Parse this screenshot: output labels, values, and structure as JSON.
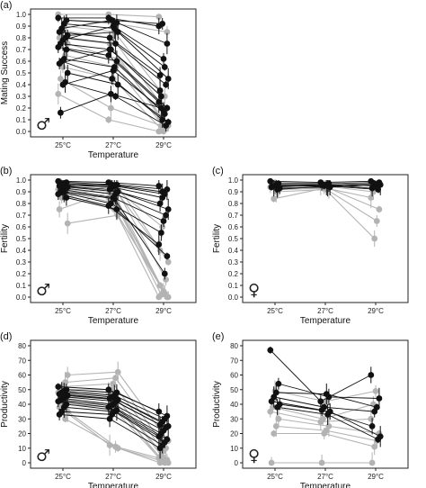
{
  "chart_data": [
    {
      "panel": "(a)",
      "type": "line",
      "sex_symbol": "♂",
      "xlabel": "Temperature",
      "ylabel": "Mating Success",
      "categories": [
        "25°C",
        "27°C",
        "29°C"
      ],
      "ylim": [
        0,
        1
      ],
      "yticks": [
        "0.0",
        "0.1",
        "0.2",
        "0.3",
        "0.4",
        "0.5",
        "0.6",
        "0.7",
        "0.8",
        "0.9",
        "1.0"
      ],
      "series_colors": {
        "dark": "#111111",
        "light": "#b3b3b3"
      },
      "series": [
        {
          "group": "dark",
          "values": [
            0.97,
            0.97,
            0.9
          ]
        },
        {
          "group": "dark",
          "values": [
            0.95,
            0.93,
            0.75
          ]
        },
        {
          "group": "dark",
          "values": [
            0.92,
            0.88,
            0.55
          ]
        },
        {
          "group": "dark",
          "values": [
            0.88,
            0.95,
            0.92
          ]
        },
        {
          "group": "dark",
          "values": [
            0.85,
            0.8,
            0.48
          ]
        },
        {
          "group": "dark",
          "values": [
            0.82,
            0.85,
            0.45
          ]
        },
        {
          "group": "dark",
          "values": [
            0.8,
            0.75,
            0.4
          ]
        },
        {
          "group": "dark",
          "values": [
            0.78,
            0.9,
            0.62
          ]
        },
        {
          "group": "dark",
          "values": [
            0.75,
            0.7,
            0.3
          ]
        },
        {
          "group": "dark",
          "values": [
            0.72,
            0.65,
            0.25
          ]
        },
        {
          "group": "dark",
          "values": [
            0.7,
            0.6,
            0.2
          ]
        },
        {
          "group": "dark",
          "values": [
            0.62,
            0.55,
            0.15
          ]
        },
        {
          "group": "dark",
          "values": [
            0.6,
            0.45,
            0.1
          ]
        },
        {
          "group": "dark",
          "values": [
            0.58,
            0.7,
            0.35
          ]
        },
        {
          "group": "dark",
          "values": [
            0.5,
            0.4,
            0.08
          ]
        },
        {
          "group": "dark",
          "values": [
            0.42,
            0.3,
            0.05
          ]
        },
        {
          "group": "dark",
          "values": [
            0.4,
            0.52,
            0.18
          ]
        },
        {
          "group": "dark",
          "values": [
            0.16,
            0.32,
            0.2
          ]
        },
        {
          "group": "light",
          "values": [
            1.0,
            1.0,
            0.98
          ]
        },
        {
          "group": "light",
          "values": [
            0.95,
            0.92,
            0.85
          ]
        },
        {
          "group": "light",
          "values": [
            0.9,
            0.85,
            0.3
          ]
        },
        {
          "group": "light",
          "values": [
            0.86,
            0.8,
            0.22
          ]
        },
        {
          "group": "light",
          "values": [
            0.8,
            0.75,
            0.12
          ]
        },
        {
          "group": "light",
          "values": [
            0.75,
            0.62,
            0.05
          ]
        },
        {
          "group": "light",
          "values": [
            0.65,
            0.55,
            0.02
          ]
        },
        {
          "group": "light",
          "values": [
            0.55,
            0.45,
            0.0
          ]
        },
        {
          "group": "light",
          "values": [
            0.45,
            0.2,
            0.05
          ]
        },
        {
          "group": "light",
          "values": [
            0.32,
            0.1,
            0.0
          ]
        }
      ]
    },
    {
      "panel": "(b)",
      "type": "line",
      "sex_symbol": "♂",
      "xlabel": "Temperature",
      "ylabel": "Fertility",
      "categories": [
        "25°C",
        "27°C",
        "29°C"
      ],
      "ylim": [
        0,
        1
      ],
      "yticks": [
        "0.0",
        "0.1",
        "0.2",
        "0.3",
        "0.4",
        "0.5",
        "0.6",
        "0.7",
        "0.8",
        "0.9",
        "1.0"
      ],
      "series_colors": {
        "dark": "#111111",
        "light": "#b3b3b3"
      },
      "series": [
        {
          "group": "dark",
          "values": [
            0.99,
            0.98,
            0.95
          ]
        },
        {
          "group": "dark",
          "values": [
            0.98,
            0.96,
            0.92
          ]
        },
        {
          "group": "dark",
          "values": [
            0.97,
            0.95,
            0.88
          ]
        },
        {
          "group": "dark",
          "values": [
            0.96,
            0.94,
            0.85
          ]
        },
        {
          "group": "dark",
          "values": [
            0.95,
            0.92,
            0.8
          ]
        },
        {
          "group": "dark",
          "values": [
            0.94,
            0.9,
            0.75
          ]
        },
        {
          "group": "dark",
          "values": [
            0.93,
            0.88,
            0.7
          ]
        },
        {
          "group": "dark",
          "values": [
            0.92,
            0.85,
            0.65
          ]
        },
        {
          "group": "dark",
          "values": [
            0.9,
            0.8,
            0.55
          ]
        },
        {
          "group": "dark",
          "values": [
            0.88,
            0.78,
            0.45
          ]
        },
        {
          "group": "dark",
          "values": [
            0.85,
            0.75,
            0.35
          ]
        },
        {
          "group": "dark",
          "values": [
            0.9,
            0.84,
            0.2
          ]
        },
        {
          "group": "dark",
          "values": [
            0.95,
            0.96,
            0.9
          ]
        },
        {
          "group": "light",
          "values": [
            0.99,
            0.98,
            0.4
          ]
        },
        {
          "group": "light",
          "values": [
            0.97,
            0.95,
            0.3
          ]
        },
        {
          "group": "light",
          "values": [
            0.96,
            0.93,
            0.15
          ]
        },
        {
          "group": "light",
          "values": [
            0.95,
            0.9,
            0.05
          ]
        },
        {
          "group": "light",
          "values": [
            0.93,
            0.88,
            0.02
          ]
        },
        {
          "group": "light",
          "values": [
            0.92,
            0.85,
            0.0
          ]
        },
        {
          "group": "light",
          "values": [
            0.9,
            0.8,
            0.0
          ]
        },
        {
          "group": "light",
          "values": [
            0.88,
            0.75,
            0.03
          ]
        },
        {
          "group": "light",
          "values": [
            0.85,
            0.95,
            0.6
          ]
        },
        {
          "group": "light",
          "values": [
            0.75,
            0.9,
            0.1
          ]
        },
        {
          "group": "light",
          "values": [
            0.63,
            0.7,
            0.0
          ]
        }
      ]
    },
    {
      "panel": "(c)",
      "type": "line",
      "sex_symbol": "♀",
      "xlabel": "Temperature",
      "ylabel": "Fertility",
      "categories": [
        "25°C",
        "27°C",
        "29°C"
      ],
      "ylim": [
        0,
        1
      ],
      "yticks": [
        "0.0",
        "0.1",
        "0.2",
        "0.3",
        "0.4",
        "0.5",
        "0.6",
        "0.7",
        "0.8",
        "0.9",
        "1.0"
      ],
      "series_colors": {
        "dark": "#111111",
        "light": "#b3b3b3"
      },
      "series": [
        {
          "group": "dark",
          "values": [
            0.99,
            0.98,
            0.99
          ]
        },
        {
          "group": "dark",
          "values": [
            0.97,
            0.97,
            0.98
          ]
        },
        {
          "group": "dark",
          "values": [
            0.96,
            0.96,
            0.95
          ]
        },
        {
          "group": "dark",
          "values": [
            0.95,
            0.95,
            0.97
          ]
        },
        {
          "group": "dark",
          "values": [
            0.94,
            0.96,
            0.93
          ]
        },
        {
          "group": "dark",
          "values": [
            0.93,
            0.94,
            0.96
          ]
        },
        {
          "group": "dark",
          "values": [
            0.92,
            0.95,
            0.92
          ]
        },
        {
          "group": "light",
          "values": [
            0.98,
            0.97,
            0.96
          ]
        },
        {
          "group": "light",
          "values": [
            0.96,
            0.95,
            0.9
          ]
        },
        {
          "group": "light",
          "values": [
            0.94,
            0.94,
            0.85
          ]
        },
        {
          "group": "light",
          "values": [
            0.92,
            0.93,
            0.75
          ]
        },
        {
          "group": "light",
          "values": [
            0.9,
            0.92,
            0.65
          ]
        },
        {
          "group": "light",
          "values": [
            0.84,
            0.93,
            0.5
          ]
        }
      ]
    },
    {
      "panel": "(d)",
      "type": "line",
      "sex_symbol": "♂",
      "xlabel": "Temperature",
      "ylabel": "Productivity",
      "categories": [
        "25°C",
        "27°C",
        "29°C"
      ],
      "ylim": [
        0,
        80
      ],
      "yticks": [
        "0",
        "10",
        "20",
        "30",
        "40",
        "50",
        "60",
        "70",
        "80"
      ],
      "series_colors": {
        "dark": "#111111",
        "light": "#b3b3b3"
      },
      "series": [
        {
          "group": "dark",
          "values": [
            52,
            50,
            35
          ]
        },
        {
          "group": "dark",
          "values": [
            50,
            48,
            32
          ]
        },
        {
          "group": "dark",
          "values": [
            49,
            46,
            30
          ]
        },
        {
          "group": "dark",
          "values": [
            48,
            45,
            28
          ]
        },
        {
          "group": "dark",
          "values": [
            47,
            44,
            26
          ]
        },
        {
          "group": "dark",
          "values": [
            46,
            43,
            25
          ]
        },
        {
          "group": "dark",
          "values": [
            45,
            42,
            24
          ]
        },
        {
          "group": "dark",
          "values": [
            44,
            40,
            22
          ]
        },
        {
          "group": "dark",
          "values": [
            43,
            39,
            20
          ]
        },
        {
          "group": "dark",
          "values": [
            42,
            38,
            18
          ]
        },
        {
          "group": "dark",
          "values": [
            40,
            36,
            16
          ]
        },
        {
          "group": "dark",
          "values": [
            38,
            35,
            14
          ]
        },
        {
          "group": "dark",
          "values": [
            35,
            33,
            12
          ]
        },
        {
          "group": "dark",
          "values": [
            33,
            30,
            10
          ]
        },
        {
          "group": "light",
          "values": [
            60,
            62,
            15
          ]
        },
        {
          "group": "light",
          "values": [
            55,
            58,
            10
          ]
        },
        {
          "group": "light",
          "values": [
            52,
            54,
            8
          ]
        },
        {
          "group": "light",
          "values": [
            50,
            50,
            5
          ]
        },
        {
          "group": "light",
          "values": [
            48,
            48,
            3
          ]
        },
        {
          "group": "light",
          "values": [
            45,
            44,
            2
          ]
        },
        {
          "group": "light",
          "values": [
            42,
            40,
            0
          ]
        },
        {
          "group": "light",
          "values": [
            40,
            38,
            1
          ]
        },
        {
          "group": "light",
          "values": [
            38,
            12,
            0
          ]
        },
        {
          "group": "light",
          "values": [
            35,
            10,
            0
          ]
        },
        {
          "group": "light",
          "values": [
            30,
            11,
            2
          ]
        }
      ]
    },
    {
      "panel": "(e)",
      "type": "line",
      "sex_symbol": "♀",
      "xlabel": "Temperature",
      "ylabel": "Productivity",
      "categories": [
        "25°C",
        "27°C",
        "29°C"
      ],
      "ylim": [
        0,
        80
      ],
      "yticks": [
        "0",
        "10",
        "20",
        "30",
        "40",
        "50",
        "60",
        "70",
        "80"
      ],
      "series_colors": {
        "dark": "#111111",
        "light": "#b3b3b3"
      },
      "series": [
        {
          "group": "dark",
          "values": [
            77,
            42,
            60
          ]
        },
        {
          "group": "dark",
          "values": [
            54,
            45,
            44
          ]
        },
        {
          "group": "dark",
          "values": [
            48,
            47,
            38
          ]
        },
        {
          "group": "dark",
          "values": [
            45,
            38,
            35
          ]
        },
        {
          "group": "dark",
          "values": [
            42,
            36,
            25
          ]
        },
        {
          "group": "dark",
          "values": [
            40,
            35,
            18
          ]
        },
        {
          "group": "dark",
          "values": [
            38,
            33,
            16
          ]
        },
        {
          "group": "light",
          "values": [
            49,
            42,
            49
          ]
        },
        {
          "group": "light",
          "values": [
            38,
            30,
            40
          ]
        },
        {
          "group": "light",
          "values": [
            35,
            28,
            30
          ]
        },
        {
          "group": "light",
          "values": [
            30,
            25,
            20
          ]
        },
        {
          "group": "light",
          "values": [
            25,
            22,
            15
          ]
        },
        {
          "group": "light",
          "values": [
            20,
            20,
            11
          ]
        },
        {
          "group": "light",
          "values": [
            0,
            0,
            0
          ]
        }
      ]
    }
  ]
}
